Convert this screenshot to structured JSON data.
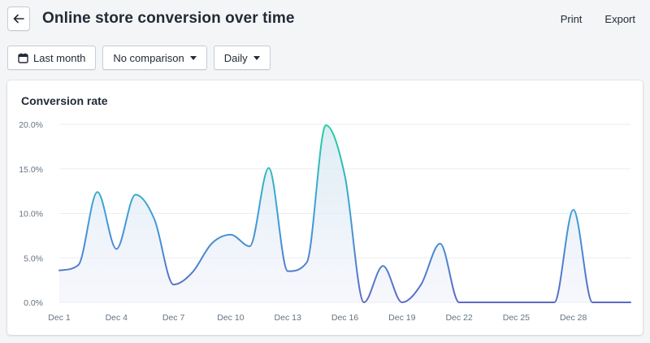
{
  "header": {
    "title": "Online store conversion over time",
    "print_label": "Print",
    "export_label": "Export"
  },
  "filters": {
    "date_range": "Last month",
    "comparison": "No comparison",
    "interval": "Daily"
  },
  "card": {
    "title": "Conversion rate"
  },
  "colors": {
    "gradient_top": "#26d0a0",
    "gradient_bottom": "#5c6ac4",
    "gridline": "#ebeef0",
    "axis_text": "#637381"
  },
  "chart_data": {
    "type": "line",
    "title": "Conversion rate",
    "x": [
      "Dec 1",
      "Dec 2",
      "Dec 3",
      "Dec 4",
      "Dec 5",
      "Dec 6",
      "Dec 7",
      "Dec 8",
      "Dec 9",
      "Dec 10",
      "Dec 11",
      "Dec 12",
      "Dec 13",
      "Dec 14",
      "Dec 15",
      "Dec 16",
      "Dec 17",
      "Dec 18",
      "Dec 19",
      "Dec 20",
      "Dec 21",
      "Dec 22",
      "Dec 23",
      "Dec 24",
      "Dec 25",
      "Dec 26",
      "Dec 27",
      "Dec 28",
      "Dec 29",
      "Dec 30",
      "Dec 31"
    ],
    "xticks": [
      "Dec 1",
      "Dec 4",
      "Dec 7",
      "Dec 10",
      "Dec 13",
      "Dec 16",
      "Dec 19",
      "Dec 22",
      "Dec 25",
      "Dec 28"
    ],
    "yticks": [
      "0.0%",
      "5.0%",
      "10.0%",
      "15.0%",
      "20.0%"
    ],
    "ylim": [
      0,
      20
    ],
    "series": [
      {
        "name": "Conversion rate",
        "values": [
          3.6,
          4.2,
          12.4,
          6.0,
          12.1,
          9.3,
          2.0,
          3.4,
          6.6,
          7.6,
          6.3,
          15.1,
          3.5,
          4.5,
          19.9,
          14.2,
          0.0,
          4.1,
          0.0,
          2.0,
          6.6,
          0.0,
          0.0,
          0.0,
          0.0,
          0.0,
          0.0,
          10.4,
          0.0,
          0.0,
          0.0
        ]
      }
    ],
    "xlabel": "",
    "ylabel": ""
  }
}
